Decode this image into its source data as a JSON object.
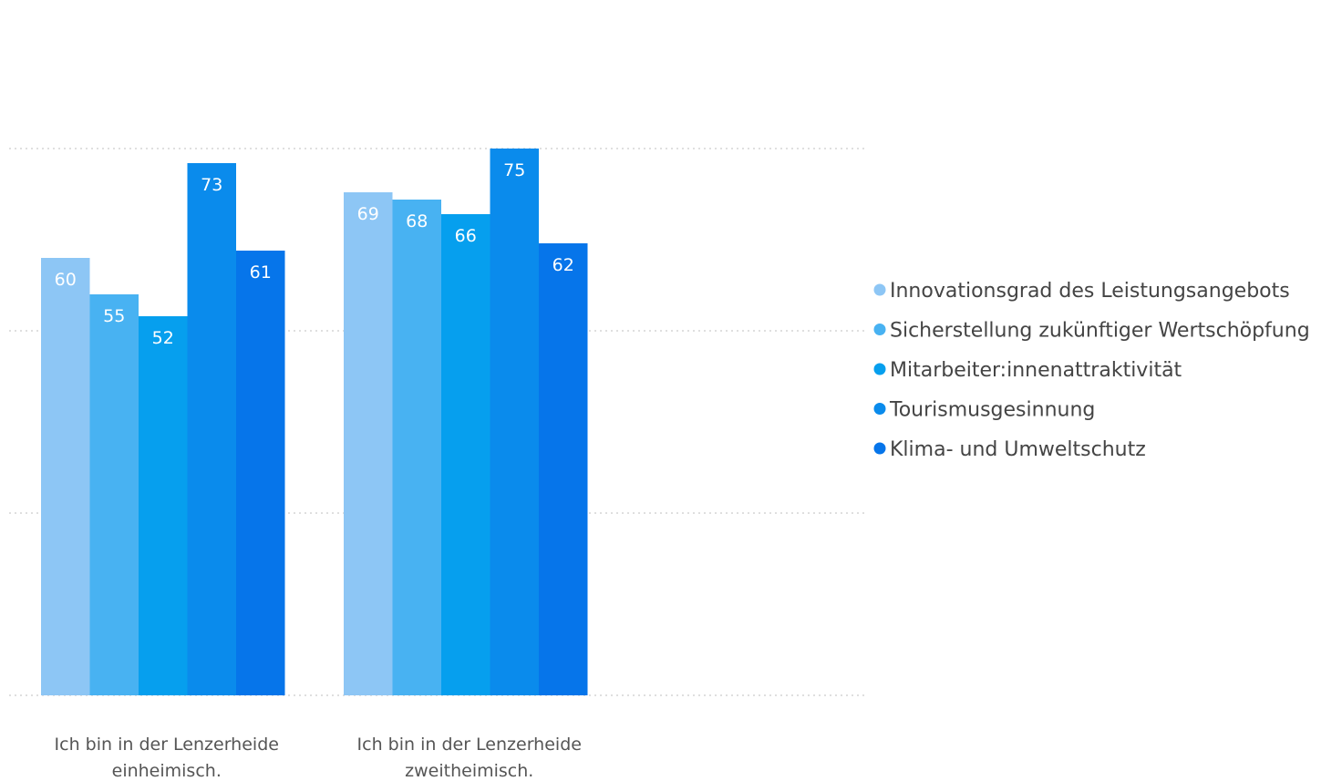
{
  "chart_data": {
    "type": "bar",
    "title": "",
    "xlabel": "",
    "ylabel": "",
    "ylim": [
      0,
      75
    ],
    "grid": true,
    "legend_position": "right",
    "categories": [
      [
        "Ich bin in der Lenzerheide",
        "einheimisch."
      ],
      [
        "Ich bin in der Lenzerheide",
        "zweitheimisch."
      ]
    ],
    "series": [
      {
        "name": "Innovationsgrad des Leistungsangebots",
        "color": "#8DC6F5",
        "values": [
          60,
          69
        ]
      },
      {
        "name": "Sicherstellung zukünftiger Wertschöpfung",
        "color": "#48B2F2",
        "values": [
          55,
          68
        ]
      },
      {
        "name": "Mitarbeiter:innenattraktivität",
        "color": "#069FEE",
        "values": [
          52,
          66
        ]
      },
      {
        "name": "Tourismusgesinnung",
        "color": "#0A8BEC",
        "values": [
          73,
          75
        ]
      },
      {
        "name": "Klima- und Umweltschutz",
        "color": "#0675EA",
        "values": [
          61,
          62
        ]
      }
    ],
    "gridlines": [
      0,
      25,
      50,
      75
    ]
  }
}
